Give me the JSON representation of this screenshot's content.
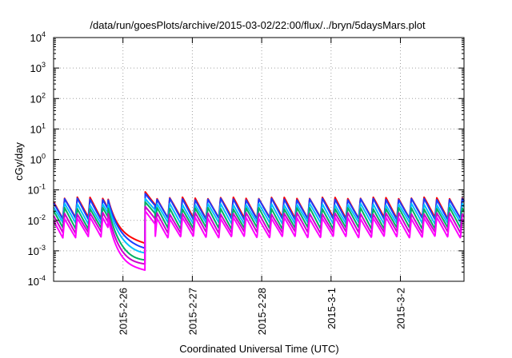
{
  "chart_data": {
    "type": "line",
    "title": "/data/run/goesPlots/archive/2015-03-02/22:00/flux/../bryn/5daysMars.plot",
    "xlabel": "Coordinated Universal Time (UTC)",
    "ylabel": "cGy/day",
    "y_scale": "log",
    "ylim": [
      0.0001,
      10000
    ],
    "xlim": [
      "2015-02-25 00:00",
      "2015-03-02 22:00"
    ],
    "grid": true,
    "legend": "none",
    "y_ticks": [
      {
        "base": "10",
        "exp": "-4",
        "value": 0.0001
      },
      {
        "base": "10",
        "exp": "-3",
        "value": 0.001
      },
      {
        "base": "10",
        "exp": "-2",
        "value": 0.01
      },
      {
        "base": "10",
        "exp": "-1",
        "value": 0.1
      },
      {
        "base": "10",
        "exp": "0",
        "value": 1
      },
      {
        "base": "10",
        "exp": "1",
        "value": 10
      },
      {
        "base": "10",
        "exp": "2",
        "value": 100
      },
      {
        "base": "10",
        "exp": "3",
        "value": 1000
      },
      {
        "base": "10",
        "exp": "4",
        "value": 10000
      }
    ],
    "x_ticks": [
      {
        "label": "2015-2-26",
        "value": "2015-02-26 00:00"
      },
      {
        "label": "2015-2-27",
        "value": "2015-02-27 00:00"
      },
      {
        "label": "2015-2-28",
        "value": "2015-02-28 00:00"
      },
      {
        "label": "2015-3-1",
        "value": "2015-03-01 00:00"
      },
      {
        "label": "2015-3-2",
        "value": "2015-03-02 00:00"
      }
    ],
    "sawtooth_period_hours": 4.4,
    "series": [
      {
        "color": "#ff0000",
        "baseline_peak": 0.055,
        "baseline_trough": 0.012,
        "gap_end_value": 0.0018
      },
      {
        "color": "#1a3cff",
        "baseline_peak": 0.05,
        "baseline_trough": 0.011,
        "gap_end_value": 0.0013
      },
      {
        "color": "#00bfff",
        "baseline_peak": 0.034,
        "baseline_trough": 0.008,
        "gap_end_value": 0.0009
      },
      {
        "color": "#00b060",
        "baseline_peak": 0.025,
        "baseline_trough": 0.0055,
        "gap_end_value": 0.0005
      },
      {
        "color": "#cc00cc",
        "baseline_peak": 0.017,
        "baseline_trough": 0.004,
        "gap_end_value": 0.00035
      },
      {
        "color": "#ff00ff",
        "baseline_peak": 0.012,
        "baseline_trough": 0.0028,
        "gap_end_value": 0.00022
      }
    ],
    "shape": {
      "decay_start": "2015-02-25 18:50",
      "jump_time": "2015-02-26 07:40",
      "post_jump_factor": 1.6
    }
  }
}
